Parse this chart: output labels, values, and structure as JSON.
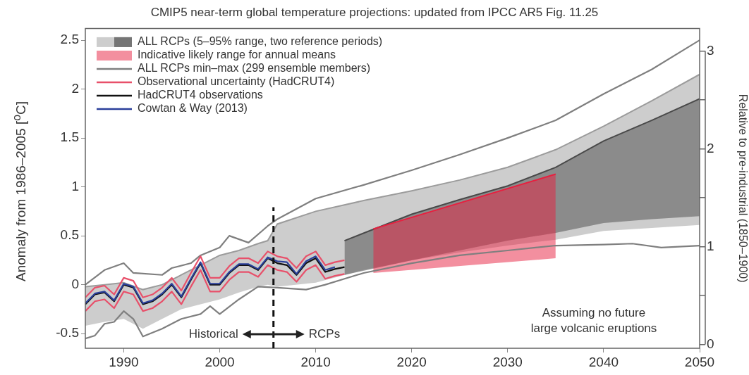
{
  "chart_data": {
    "type": "line",
    "title": "CMIP5 near-term global temperature projections: updated from IPCC AR5 Fig. 11.25",
    "ylabel": "Anomaly from 1986–2005  [$^{o}$C]",
    "y2label": "Relative to pre-industrial (1850–1900)",
    "xlim": [
      1986,
      2050
    ],
    "xticks": [
      1990,
      2000,
      2010,
      2020,
      2030,
      2040,
      2050
    ],
    "ylim": [
      -0.65,
      2.62
    ],
    "yticks": [
      -0.5,
      0,
      0.5,
      1,
      1.5,
      2,
      2.5
    ],
    "y2lim": [
      -0.04,
      3.23
    ],
    "y2ticks": [
      0,
      {
        "value": 0.5,
        "label": null
      },
      1,
      {
        "value": 1.5,
        "label": null
      },
      2,
      {
        "value": 2.5,
        "label": null
      },
      3
    ],
    "legend": "top left",
    "series": [
      {
        "name": "ALL RCPs (5–95% range, two reference periods)",
        "type": "line",
        "color": "#9c9c9c",
        "x": [
          1986,
          1988,
          1990,
          1992,
          1994,
          1996,
          1998,
          2000,
          2002,
          2004,
          2005,
          2006,
          2010,
          2015,
          2020,
          2025,
          2030,
          2035,
          2040,
          2045,
          2050
        ],
        "values": [
          -0.02,
          0.0,
          0.02,
          -0.05,
          0.0,
          0.1,
          0.2,
          0.3,
          0.35,
          0.42,
          0.45,
          0.62,
          0.75,
          0.86,
          0.96,
          1.07,
          1.2,
          1.38,
          1.62,
          1.88,
          2.15
        ],
        "lower": [
          -0.42,
          -0.38,
          -0.35,
          -0.45,
          -0.35,
          -0.25,
          -0.2,
          -0.15,
          -0.08,
          -0.02,
          0.0,
          -0.02,
          0.02,
          0.15,
          0.25,
          0.33,
          0.4,
          0.46,
          0.55,
          0.58,
          0.61
        ],
        "upper": [
          -0.02,
          0.0,
          0.02,
          -0.05,
          0.0,
          0.1,
          0.2,
          0.3,
          0.35,
          0.42,
          0.45,
          0.62,
          0.75,
          0.86,
          0.96,
          1.07,
          1.2,
          1.38,
          1.62,
          1.88,
          2.15
        ]
      },
      {
        "type": "line",
        "color": "#4a4a4a",
        "x": [
          2013,
          2020,
          2025,
          2030,
          2035,
          2040,
          2045,
          2050
        ],
        "values": [
          0.45,
          0.72,
          0.87,
          1.01,
          1.2,
          1.47,
          1.68,
          1.9
        ],
        "lower": [
          0.1,
          0.25,
          0.35,
          0.45,
          0.53,
          0.63,
          0.67,
          0.7
        ],
        "upper": [
          0.45,
          0.72,
          0.87,
          1.01,
          1.2,
          1.47,
          1.68,
          1.9
        ]
      },
      {
        "name": "Indicative likely range for annual means",
        "type": "line",
        "color": "#e8203f",
        "x": [
          2016,
          2035
        ],
        "values": [
          0.57,
          1.13
        ],
        "lower": [
          0.12,
          0.27
        ],
        "upper": [
          0.57,
          1.13
        ]
      },
      {
        "name": "ALL RCPs min–max (299 ensemble members)",
        "color": "#7f7f7f",
        "x": [
          1986,
          1988,
          1990,
          1991,
          1994,
          1995,
          1997,
          1998,
          2000,
          2001,
          2003,
          2005,
          2006,
          2010,
          2015,
          2020,
          2025,
          2030,
          2035,
          2040,
          2045,
          2050
        ],
        "values": [
          0.0,
          0.15,
          0.22,
          0.12,
          0.1,
          0.17,
          0.22,
          0.3,
          0.38,
          0.5,
          0.43,
          0.6,
          0.67,
          0.88,
          1.02,
          1.17,
          1.33,
          1.5,
          1.68,
          1.95,
          2.2,
          2.5
        ]
      },
      {
        "color": "#7f7f7f",
        "x": [
          1986,
          1987,
          1988,
          1989,
          1990,
          1991,
          1992,
          1994,
          1996,
          1998,
          1999,
          2000,
          2002,
          2004,
          2006,
          2009,
          2011,
          2013,
          2015,
          2020,
          2025,
          2030,
          2035,
          2040,
          2043,
          2046,
          2050
        ],
        "values": [
          -0.55,
          -0.52,
          -0.4,
          -0.38,
          -0.27,
          -0.35,
          -0.53,
          -0.45,
          -0.35,
          -0.3,
          -0.22,
          -0.3,
          -0.15,
          -0.02,
          -0.03,
          -0.05,
          0.0,
          0.06,
          0.12,
          0.22,
          0.3,
          0.35,
          0.4,
          0.41,
          0.42,
          0.38,
          0.4
        ]
      },
      {
        "name": "Observational uncertainty (HadCRUT4)",
        "color": "#e8506a",
        "x": [
          1986,
          1987,
          1988,
          1989,
          1990,
          1991,
          1992,
          1993,
          1994,
          1995,
          1996,
          1997,
          1998,
          1999,
          2000,
          2001,
          2002,
          2003,
          2004,
          2005,
          2006,
          2007,
          2008,
          2009,
          2010,
          2011,
          2012,
          2013
        ],
        "values": [
          -0.13,
          -0.03,
          -0.01,
          -0.1,
          0.07,
          0.04,
          -0.13,
          -0.1,
          -0.03,
          0.07,
          -0.06,
          0.12,
          0.29,
          0.07,
          0.07,
          0.19,
          0.27,
          0.27,
          0.22,
          0.34,
          0.29,
          0.27,
          0.17,
          0.29,
          0.34,
          0.2,
          0.23,
          0.25
        ]
      },
      {
        "color": "#e8506a",
        "x": [
          1986,
          1987,
          1988,
          1989,
          1990,
          1991,
          1992,
          1993,
          1994,
          1995,
          1996,
          1997,
          1998,
          1999,
          2000,
          2001,
          2002,
          2003,
          2004,
          2005,
          2006,
          2007,
          2008,
          2009,
          2010,
          2011,
          2012,
          2013
        ],
        "values": [
          -0.27,
          -0.17,
          -0.15,
          -0.24,
          -0.07,
          -0.1,
          -0.27,
          -0.24,
          -0.17,
          -0.07,
          -0.2,
          -0.02,
          0.15,
          -0.07,
          -0.07,
          0.05,
          0.13,
          0.13,
          0.08,
          0.2,
          0.15,
          0.13,
          0.03,
          0.15,
          0.2,
          0.06,
          0.09,
          0.11
        ]
      },
      {
        "name": "HadCRUT4 observations",
        "color": "#111111",
        "x": [
          1986,
          1987,
          1988,
          1989,
          1990,
          1991,
          1992,
          1993,
          1994,
          1995,
          1996,
          1997,
          1998,
          1999,
          2000,
          2001,
          2002,
          2003,
          2004,
          2005,
          2006,
          2007,
          2008,
          2009,
          2010,
          2011,
          2012,
          2013
        ],
        "values": [
          -0.2,
          -0.1,
          -0.08,
          -0.17,
          0.0,
          -0.03,
          -0.2,
          -0.17,
          -0.1,
          0.0,
          -0.13,
          0.05,
          0.22,
          0.0,
          0.0,
          0.12,
          0.2,
          0.2,
          0.15,
          0.27,
          0.22,
          0.2,
          0.1,
          0.22,
          0.27,
          0.13,
          0.16,
          0.18
        ]
      },
      {
        "name": "Cowtan & Way (2013)",
        "color": "#2a3f9a",
        "x": [
          1986,
          1987,
          1988,
          1989,
          1990,
          1991,
          1992,
          1993,
          1994,
          1995,
          1996,
          1997,
          1998,
          1999,
          2000,
          2001,
          2002,
          2003,
          2004,
          2005,
          2006,
          2007,
          2008,
          2009,
          2010,
          2011,
          2012
        ],
        "values": [
          -0.19,
          -0.09,
          -0.07,
          -0.16,
          0.01,
          -0.02,
          -0.19,
          -0.16,
          -0.09,
          0.01,
          -0.12,
          0.06,
          0.23,
          0.01,
          0.01,
          0.13,
          0.21,
          0.21,
          0.16,
          0.28,
          0.24,
          0.23,
          0.11,
          0.24,
          0.29,
          0.15,
          0.18
        ]
      }
    ],
    "ref_lines": [
      {
        "axis": "x",
        "value": 2005.6,
        "color": "#111111",
        "line_style": "dashed"
      }
    ],
    "annotations": [
      "Historical",
      "RCPs",
      "Assuming no future\nlarge volcanic eruptions"
    ]
  }
}
